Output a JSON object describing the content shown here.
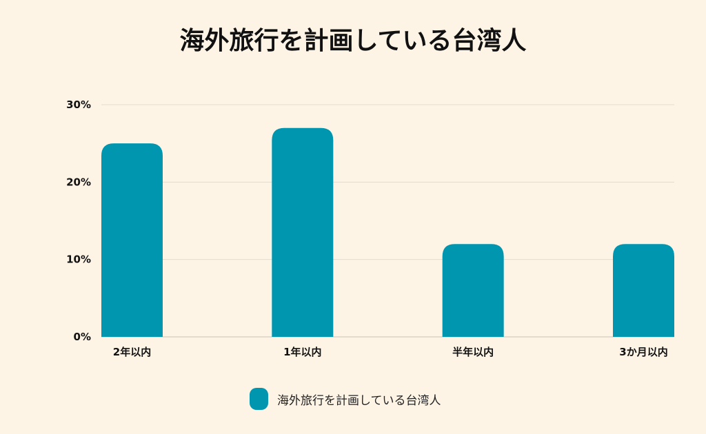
{
  "chart_data": {
    "type": "bar",
    "title": "海外旅行を計画している台湾人",
    "categories": [
      "2年以内",
      "1年以内",
      "半年以内",
      "3か月以内"
    ],
    "series": [
      {
        "name": "海外旅行を計画している台湾人",
        "values": [
          25,
          27,
          12,
          12
        ]
      }
    ],
    "ylim": [
      0,
      30
    ],
    "yticks": [
      "0%",
      "10%",
      "20%",
      "30%"
    ],
    "grid": true,
    "legend": "bottom",
    "colors": {
      "bar": "#0096b0",
      "background": "#fdf4e6",
      "grid": "#e3dbcd"
    }
  }
}
